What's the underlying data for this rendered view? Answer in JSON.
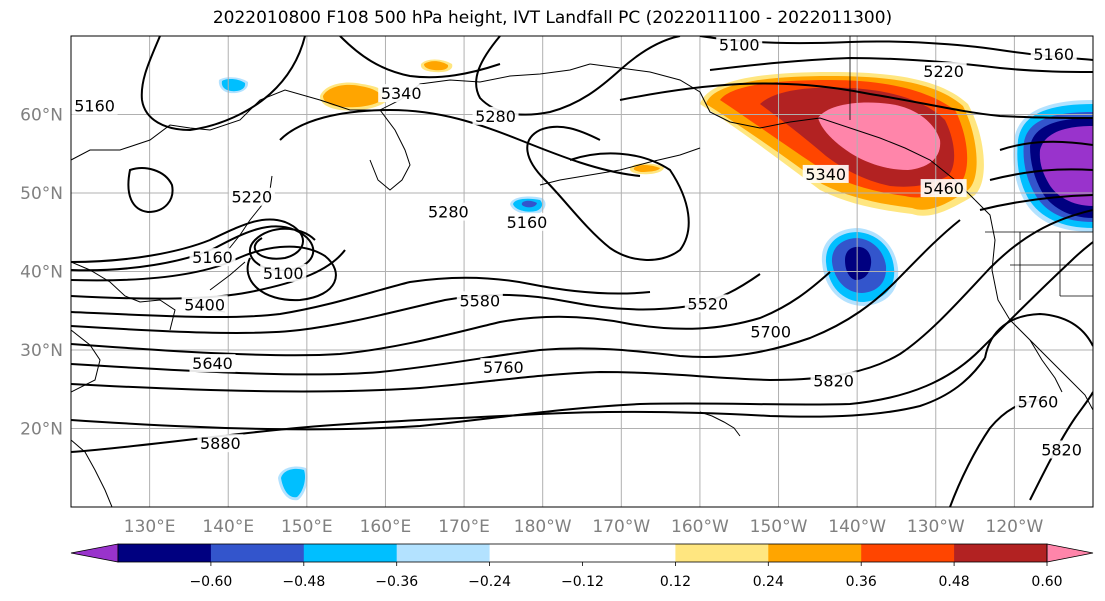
{
  "title": "2022010800 F108 500 hPa height, IVT Landfall PC (2022011100 - 2022011300)",
  "map": {
    "projection": "PlateCarree",
    "lon_range": [
      120,
      250
    ],
    "lat_range": [
      10,
      70
    ],
    "lon_ticks": [
      {
        "lon": 130,
        "label": "130°E"
      },
      {
        "lon": 140,
        "label": "140°E"
      },
      {
        "lon": 150,
        "label": "150°E"
      },
      {
        "lon": 160,
        "label": "160°E"
      },
      {
        "lon": 170,
        "label": "170°E"
      },
      {
        "lon": 180,
        "label": "180°W"
      },
      {
        "lon": 190,
        "label": "170°W"
      },
      {
        "lon": 200,
        "label": "160°W"
      },
      {
        "lon": 210,
        "label": "150°W"
      },
      {
        "lon": 220,
        "label": "140°W"
      },
      {
        "lon": 230,
        "label": "130°W"
      },
      {
        "lon": 240,
        "label": "120°W"
      }
    ],
    "lat_ticks": [
      {
        "lat": 20,
        "label": "20°N"
      },
      {
        "lat": 30,
        "label": "30°N"
      },
      {
        "lat": 40,
        "label": "40°N"
      },
      {
        "lat": 50,
        "label": "50°N"
      },
      {
        "lat": 60,
        "label": "60°N"
      }
    ],
    "gridlines": true,
    "height_contour_labels": [
      {
        "text": "5100",
        "lon": 205,
        "lat": 68.8
      },
      {
        "text": "5160",
        "lon": 245,
        "lat": 67.6
      },
      {
        "text": "5220",
        "lon": 231,
        "lat": 65.4
      },
      {
        "text": "5160",
        "lon": 123,
        "lat": 61.0
      },
      {
        "text": "5340",
        "lon": 162,
        "lat": 62.6
      },
      {
        "text": "5280",
        "lon": 174,
        "lat": 59.7
      },
      {
        "text": "5220",
        "lon": 143,
        "lat": 49.4
      },
      {
        "text": "5280",
        "lon": 168,
        "lat": 47.5
      },
      {
        "text": "5160",
        "lon": 178,
        "lat": 46.2
      },
      {
        "text": "5160",
        "lon": 138,
        "lat": 41.7
      },
      {
        "text": "5100",
        "lon": 147,
        "lat": 39.7
      },
      {
        "text": "5400",
        "lon": 137,
        "lat": 35.7
      },
      {
        "text": "5580",
        "lon": 172,
        "lat": 36.2
      },
      {
        "text": "5520",
        "lon": 201,
        "lat": 35.8
      },
      {
        "text": "5340",
        "lon": 216,
        "lat": 52.3
      },
      {
        "text": "5460",
        "lon": 231,
        "lat": 50.5
      },
      {
        "text": "5700",
        "lon": 209,
        "lat": 32.2
      },
      {
        "text": "5640",
        "lon": 138,
        "lat": 28.2
      },
      {
        "text": "5760",
        "lon": 175,
        "lat": 27.7
      },
      {
        "text": "5820",
        "lon": 217,
        "lat": 26.0
      },
      {
        "text": "5760",
        "lon": 243,
        "lat": 23.3
      },
      {
        "text": "5880",
        "lon": 139,
        "lat": 18.0
      },
      {
        "text": "5820",
        "lon": 246,
        "lat": 17.2
      }
    ],
    "ivt_pc_shading": [
      {
        "name": "gulf-of-alaska-positive",
        "sign": "positive",
        "max_level": 0.6
      },
      {
        "name": "sea-of-okhotsk-positive",
        "sign": "positive",
        "max_level": 0.36
      },
      {
        "name": "bering-positive",
        "sign": "positive",
        "max_level": 0.36
      },
      {
        "name": "east-pacific-negative",
        "sign": "negative",
        "max_level": -0.6
      },
      {
        "name": "northwest-coast-negative",
        "sign": "negative",
        "max_level": -0.6
      },
      {
        "name": "central-pacific-negative",
        "sign": "negative",
        "max_level": -0.36
      },
      {
        "name": "kamchatka-negative",
        "sign": "negative",
        "max_level": -0.24
      },
      {
        "name": "west-pacific-negative",
        "sign": "negative",
        "max_level": -0.24
      }
    ]
  },
  "colorbar": {
    "colors": [
      "#9933cc",
      "#000080",
      "#3355cc",
      "#00bfff",
      "#b3e2ff",
      "#ffffff",
      "#ffffff",
      "#ffe680",
      "#ffa500",
      "#ff4500",
      "#b22222",
      "#ff85aa"
    ],
    "tick_labels": [
      "−0.60",
      "−0.48",
      "−0.36",
      "−0.24",
      "−0.12",
      "0.12",
      "0.24",
      "0.36",
      "0.48",
      "0.60"
    ]
  }
}
